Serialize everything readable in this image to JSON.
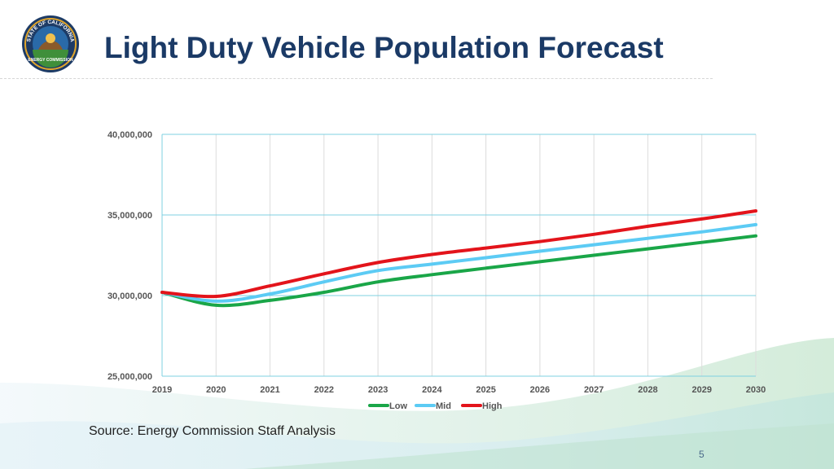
{
  "slide": {
    "title": "Light Duty Vehicle Population Forecast",
    "source": "Source: Energy Commission Staff Analysis",
    "page_number": "5",
    "logo": {
      "top_text": "STATE OF CALIFORNIA",
      "bottom_text": "ENERGY COMMISSION"
    }
  },
  "colors": {
    "title": "#1b3a66",
    "grid": "#7fd0e0",
    "low": "#1aa648",
    "mid": "#5ccbf4",
    "high": "#e3141b"
  },
  "chart_data": {
    "type": "line",
    "title": "",
    "xlabel": "",
    "ylabel": "",
    "x": [
      2019,
      2020,
      2021,
      2022,
      2023,
      2024,
      2025,
      2026,
      2027,
      2028,
      2029,
      2030
    ],
    "x_tick_labels": [
      "2019",
      "2020",
      "2021",
      "2022",
      "2023",
      "2024",
      "2025",
      "2026",
      "2027",
      "2028",
      "2029",
      "2030"
    ],
    "y_ticks": [
      25000000,
      30000000,
      35000000,
      40000000
    ],
    "y_tick_labels": [
      "25,000,000",
      "30,000,000",
      "35,000,000",
      "40,000,000"
    ],
    "ylim": [
      25000000,
      40000000
    ],
    "grid": true,
    "legend_position": "bottom",
    "series": [
      {
        "name": "Low",
        "color": "#1aa648",
        "values": [
          30200000,
          29400000,
          29700000,
          30200000,
          30850000,
          31300000,
          31700000,
          32100000,
          32500000,
          32900000,
          33300000,
          33700000
        ]
      },
      {
        "name": "Mid",
        "color": "#5ccbf4",
        "values": [
          30200000,
          29650000,
          30100000,
          30850000,
          31550000,
          31950000,
          32350000,
          32750000,
          33150000,
          33550000,
          33950000,
          34400000
        ]
      },
      {
        "name": "High",
        "color": "#e3141b",
        "values": [
          30200000,
          29950000,
          30600000,
          31350000,
          32050000,
          32550000,
          32950000,
          33350000,
          33800000,
          34300000,
          34750000,
          35250000
        ]
      }
    ]
  }
}
